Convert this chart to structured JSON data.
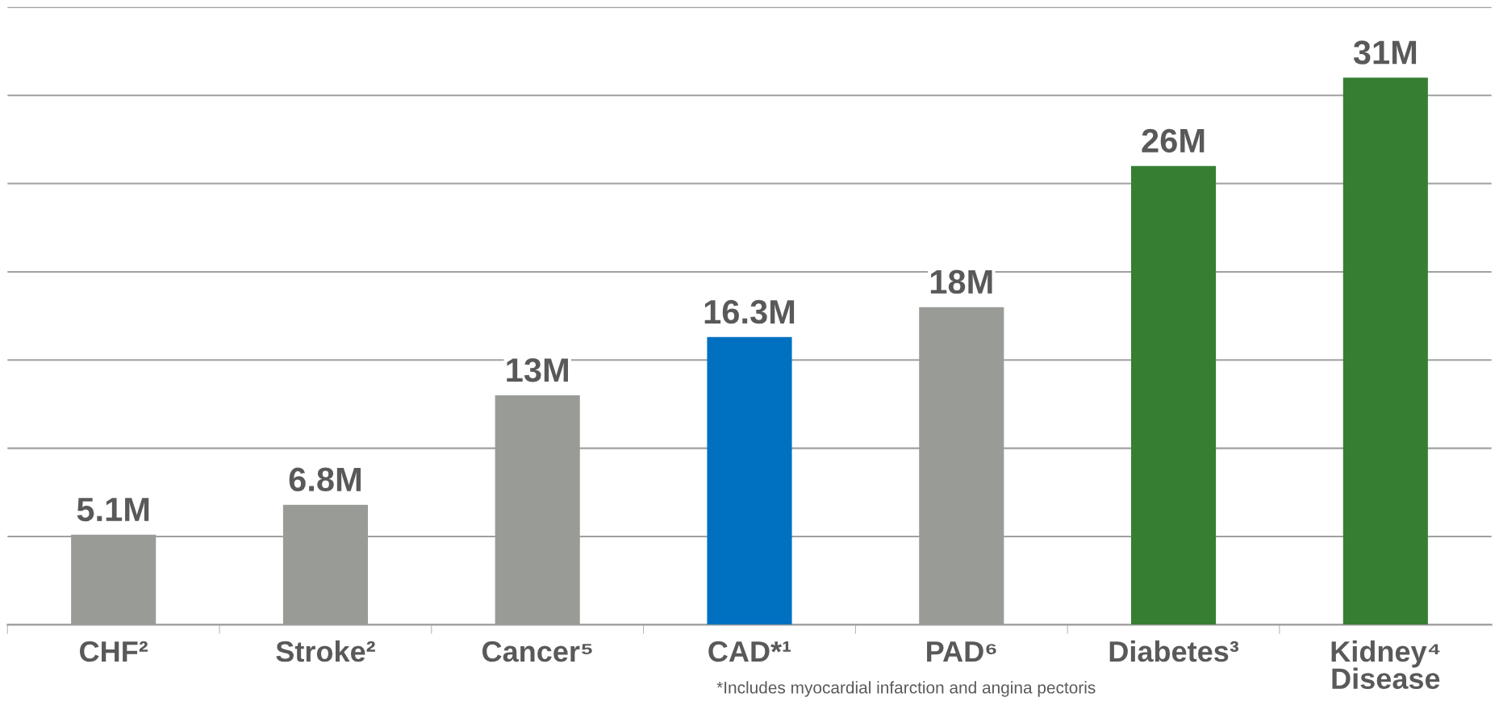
{
  "chart_data": {
    "type": "bar",
    "categories": [
      "CHF²",
      "Stroke²",
      "Cancer⁵",
      "CAD*¹",
      "PAD⁶",
      "Diabetes³",
      "Kidney⁴\nDisease"
    ],
    "values": [
      5.1,
      6.8,
      13,
      16.3,
      18,
      26,
      31
    ],
    "colors": [
      "#989b96",
      "#989b96",
      "#989b96",
      "#0070c0",
      "#989b96",
      "#367f32",
      "#367f32"
    ],
    "value_labels": [
      "5.1M",
      "6.8M",
      "13M",
      "16.3M",
      "18M",
      "26M",
      "31M"
    ],
    "ylim": [
      0,
      35
    ],
    "yticks": [
      {
        "value": 0,
        "label": null
      },
      {
        "value": 5,
        "label": null
      },
      {
        "value": 10,
        "label": null
      },
      {
        "value": 15,
        "label": null
      },
      {
        "value": 20,
        "label": null
      },
      {
        "value": 25,
        "label": null
      },
      {
        "value": 30,
        "label": null
      },
      {
        "value": 35,
        "label": null
      }
    ],
    "tick_labels": "x",
    "grid": "y",
    "annotations": [
      "*Includes myocardial infarction and angina pectoris"
    ]
  }
}
